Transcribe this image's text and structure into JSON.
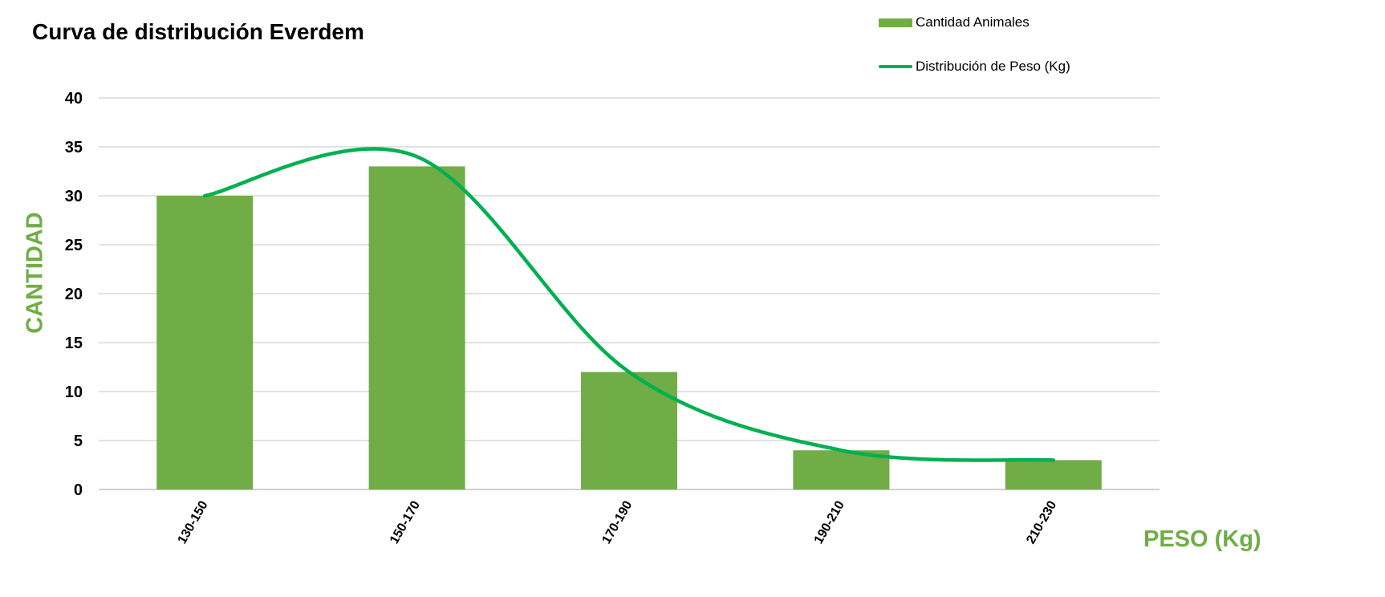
{
  "chart_data": {
    "type": "bar",
    "title": "Curva de distribución Everdem",
    "xlabel": "PESO (Kg)",
    "ylabel": "CANTIDAD",
    "categories": [
      "130-150",
      "150-170",
      "170-190",
      "190-210",
      "210-230"
    ],
    "series": [
      {
        "name": "Cantidad Animales",
        "type": "bar",
        "values": [
          30,
          33,
          12,
          4,
          3
        ],
        "color": "#70ad47"
      },
      {
        "name": "Distribución de Peso (Kg)",
        "type": "line",
        "smooth": true,
        "values": [
          30,
          34,
          12,
          4,
          3
        ],
        "color": "#00b050"
      }
    ],
    "ylim": [
      0,
      40
    ],
    "yticks": [
      0,
      5,
      10,
      15,
      20,
      25,
      30,
      35,
      40
    ],
    "grid": true,
    "legend_position": "top-right",
    "axis_title_color": "#70ad47"
  }
}
